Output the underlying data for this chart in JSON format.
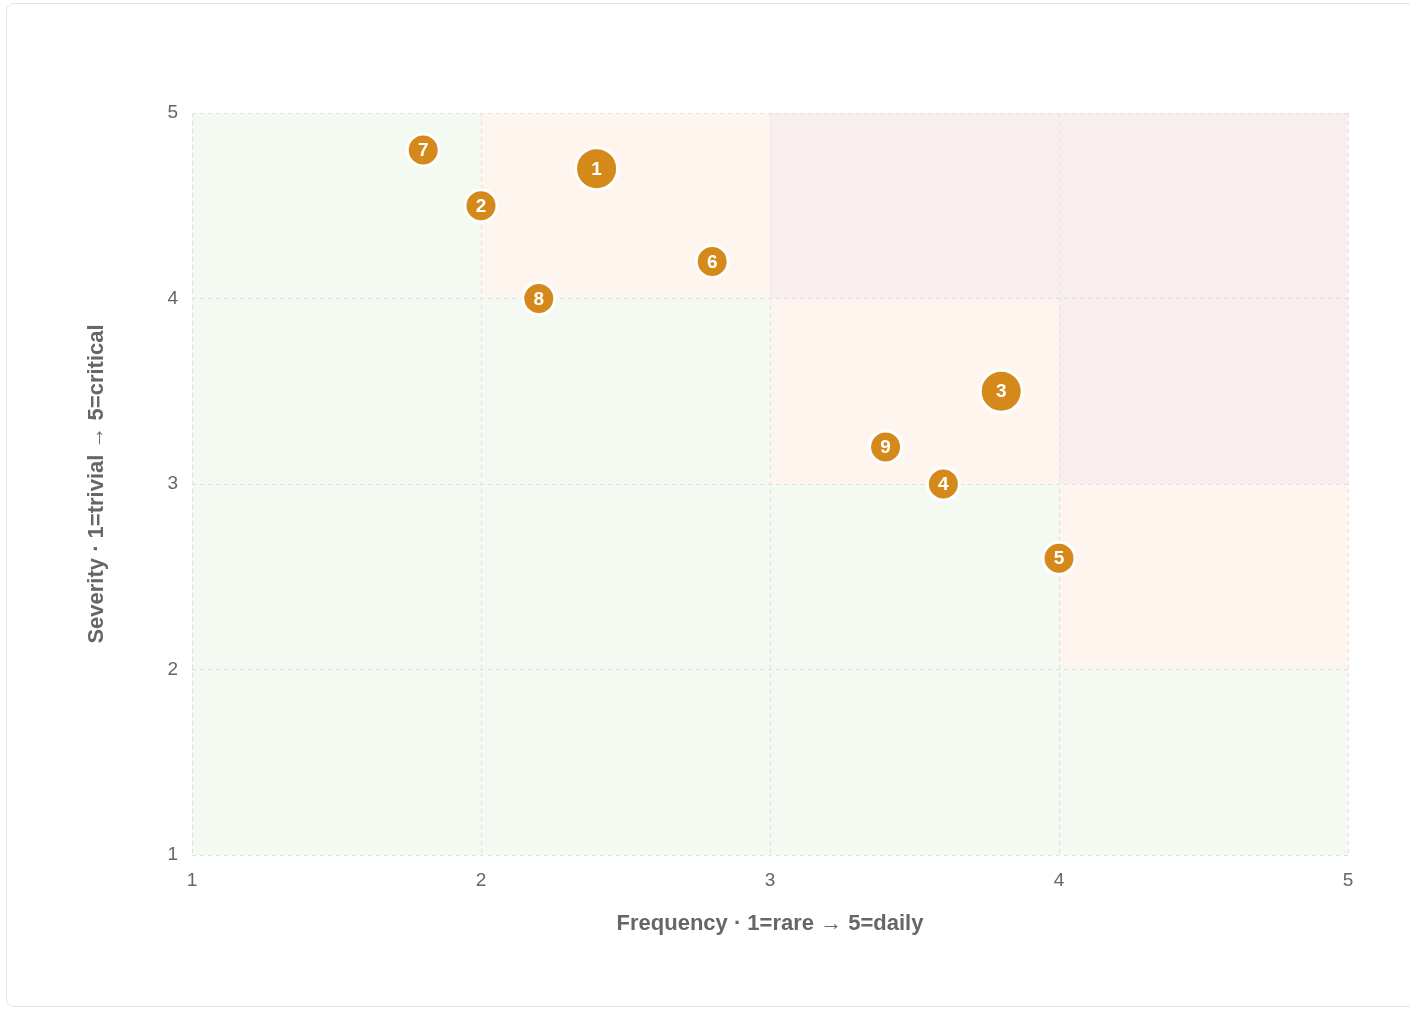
{
  "chart_data": {
    "type": "bubble",
    "xlabel": "Frequency · 1=rare → 5=daily",
    "ylabel": "Severity · 1=trivial → 5=critical",
    "x": [
      1.8,
      2.0,
      2.4,
      2.8,
      2.2,
      3.8,
      3.4,
      3.6,
      4.0
    ],
    "values": [
      4.8,
      4.5,
      4.7,
      4.2,
      4.0,
      3.5,
      3.2,
      3.0,
      2.6
    ],
    "sizes": [
      0.58,
      0.58,
      1,
      0.58,
      0.58,
      1,
      0.58,
      0.58,
      0.58
    ],
    "color": "#d4891a",
    "xlim": [
      1,
      5
    ],
    "ylim": [
      1,
      5
    ],
    "xticks": [
      1,
      2,
      3,
      4,
      5
    ],
    "yticks": [
      1,
      2,
      3,
      4,
      5
    ],
    "grid": true,
    "annotations": [
      {
        "text": "7",
        "x": 1.8,
        "y": 4.8
      },
      {
        "text": "2",
        "x": 2.0,
        "y": 4.5
      },
      {
        "text": "1",
        "x": 2.4,
        "y": 4.7
      },
      {
        "text": "6",
        "x": 2.8,
        "y": 4.2
      },
      {
        "text": "8",
        "x": 2.2,
        "y": 4.0
      },
      {
        "text": "3",
        "x": 3.8,
        "y": 3.5
      },
      {
        "text": "9",
        "x": 3.4,
        "y": 3.2
      },
      {
        "text": "4",
        "x": 3.6,
        "y": 3.0
      },
      {
        "text": "5",
        "x": 4.0,
        "y": 2.6
      }
    ]
  }
}
